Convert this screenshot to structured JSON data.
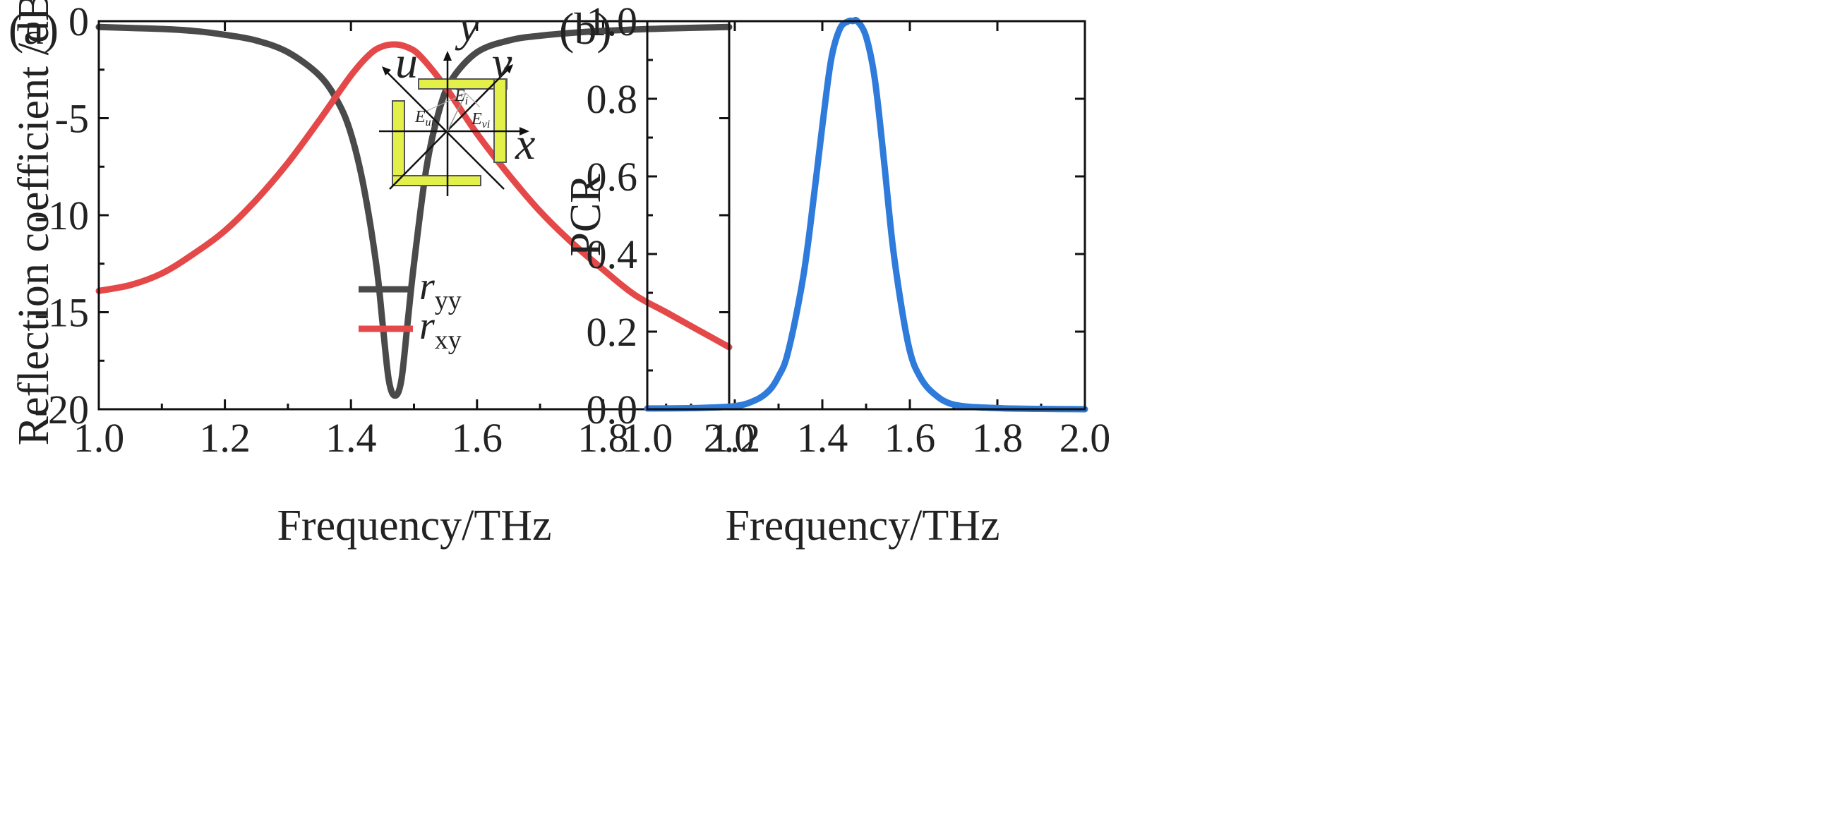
{
  "chart_data": [
    {
      "panel_label": "(a)",
      "type": "line",
      "title": "",
      "xlabel": "Frequency/THz",
      "ylabel": "Reflection coefficient /dB",
      "xlim": [
        1.0,
        2.0
      ],
      "ylim": [
        -20,
        0
      ],
      "xticks": [
        "1.0",
        "1.2",
        "1.4",
        "1.6",
        "1.8",
        "2.0"
      ],
      "yticks": [
        "0",
        "-5",
        "-10",
        "-15",
        "-20"
      ],
      "grid": false,
      "legend_position": "lower-right",
      "series": [
        {
          "name": "r_yy",
          "legend_main": "r",
          "legend_sub": "yy",
          "color": "#4a4a4a",
          "x": [
            1.0,
            1.05,
            1.1,
            1.15,
            1.2,
            1.25,
            1.3,
            1.35,
            1.38,
            1.4,
            1.42,
            1.44,
            1.45,
            1.46,
            1.47,
            1.48,
            1.49,
            1.5,
            1.52,
            1.54,
            1.56,
            1.6,
            1.65,
            1.7,
            1.8,
            1.9,
            2.0
          ],
          "values": [
            -0.3,
            -0.35,
            -0.4,
            -0.5,
            -0.7,
            -1.0,
            -1.6,
            -2.8,
            -4.2,
            -5.8,
            -8.5,
            -12.5,
            -15.5,
            -18.5,
            -19.3,
            -18.5,
            -15.5,
            -12.5,
            -7.5,
            -4.6,
            -3.0,
            -1.6,
            -1.0,
            -0.75,
            -0.5,
            -0.38,
            -0.3
          ]
        },
        {
          "name": "r_xy",
          "legend_main": "r",
          "legend_sub": "xy",
          "color": "#e54848",
          "x": [
            1.0,
            1.05,
            1.1,
            1.15,
            1.2,
            1.25,
            1.3,
            1.35,
            1.4,
            1.43,
            1.45,
            1.47,
            1.49,
            1.51,
            1.55,
            1.6,
            1.65,
            1.7,
            1.75,
            1.8,
            1.85,
            1.9,
            1.95,
            2.0
          ],
          "values": [
            -13.9,
            -13.6,
            -13.0,
            -12.0,
            -10.8,
            -9.2,
            -7.3,
            -5.1,
            -2.8,
            -1.7,
            -1.3,
            -1.2,
            -1.35,
            -1.8,
            -3.4,
            -5.8,
            -7.9,
            -9.8,
            -11.4,
            -12.8,
            -14.1,
            -15.0,
            -15.9,
            -16.8
          ]
        }
      ],
      "inset": {
        "axis_labels": [
          "x",
          "y",
          "u",
          "v"
        ],
        "field_labels": {
          "e_ui": {
            "main": "E",
            "sub": "ui"
          },
          "e_i": {
            "main": "E",
            "sub": "i"
          },
          "e_vi": {
            "main": "E",
            "sub": "vi"
          }
        },
        "color": "#e4f04a"
      }
    },
    {
      "panel_label": "(b)",
      "type": "line",
      "title": "",
      "xlabel": "Frequency/THz",
      "ylabel": "PCR",
      "xlim": [
        1.0,
        2.0
      ],
      "ylim": [
        0.0,
        1.0
      ],
      "xticks": [
        "1.0",
        "1.2",
        "1.4",
        "1.6",
        "1.8",
        "2.0"
      ],
      "yticks": [
        "0.0",
        "0.2",
        "0.4",
        "0.6",
        "0.8",
        "1.0"
      ],
      "grid": false,
      "series": [
        {
          "name": "PCR",
          "color": "#2e7bdc",
          "x": [
            1.0,
            1.1,
            1.2,
            1.25,
            1.28,
            1.3,
            1.32,
            1.35,
            1.37,
            1.4,
            1.42,
            1.44,
            1.46,
            1.47,
            1.48,
            1.5,
            1.52,
            1.54,
            1.56,
            1.58,
            1.6,
            1.62,
            1.65,
            1.7,
            1.8,
            1.9,
            2.0
          ],
          "values": [
            0.002,
            0.003,
            0.008,
            0.025,
            0.05,
            0.085,
            0.14,
            0.3,
            0.45,
            0.73,
            0.9,
            0.98,
            1.0,
            1.0,
            1.0,
            0.96,
            0.85,
            0.65,
            0.43,
            0.27,
            0.15,
            0.09,
            0.045,
            0.012,
            0.003,
            0.001,
            0.0
          ]
        }
      ]
    }
  ]
}
